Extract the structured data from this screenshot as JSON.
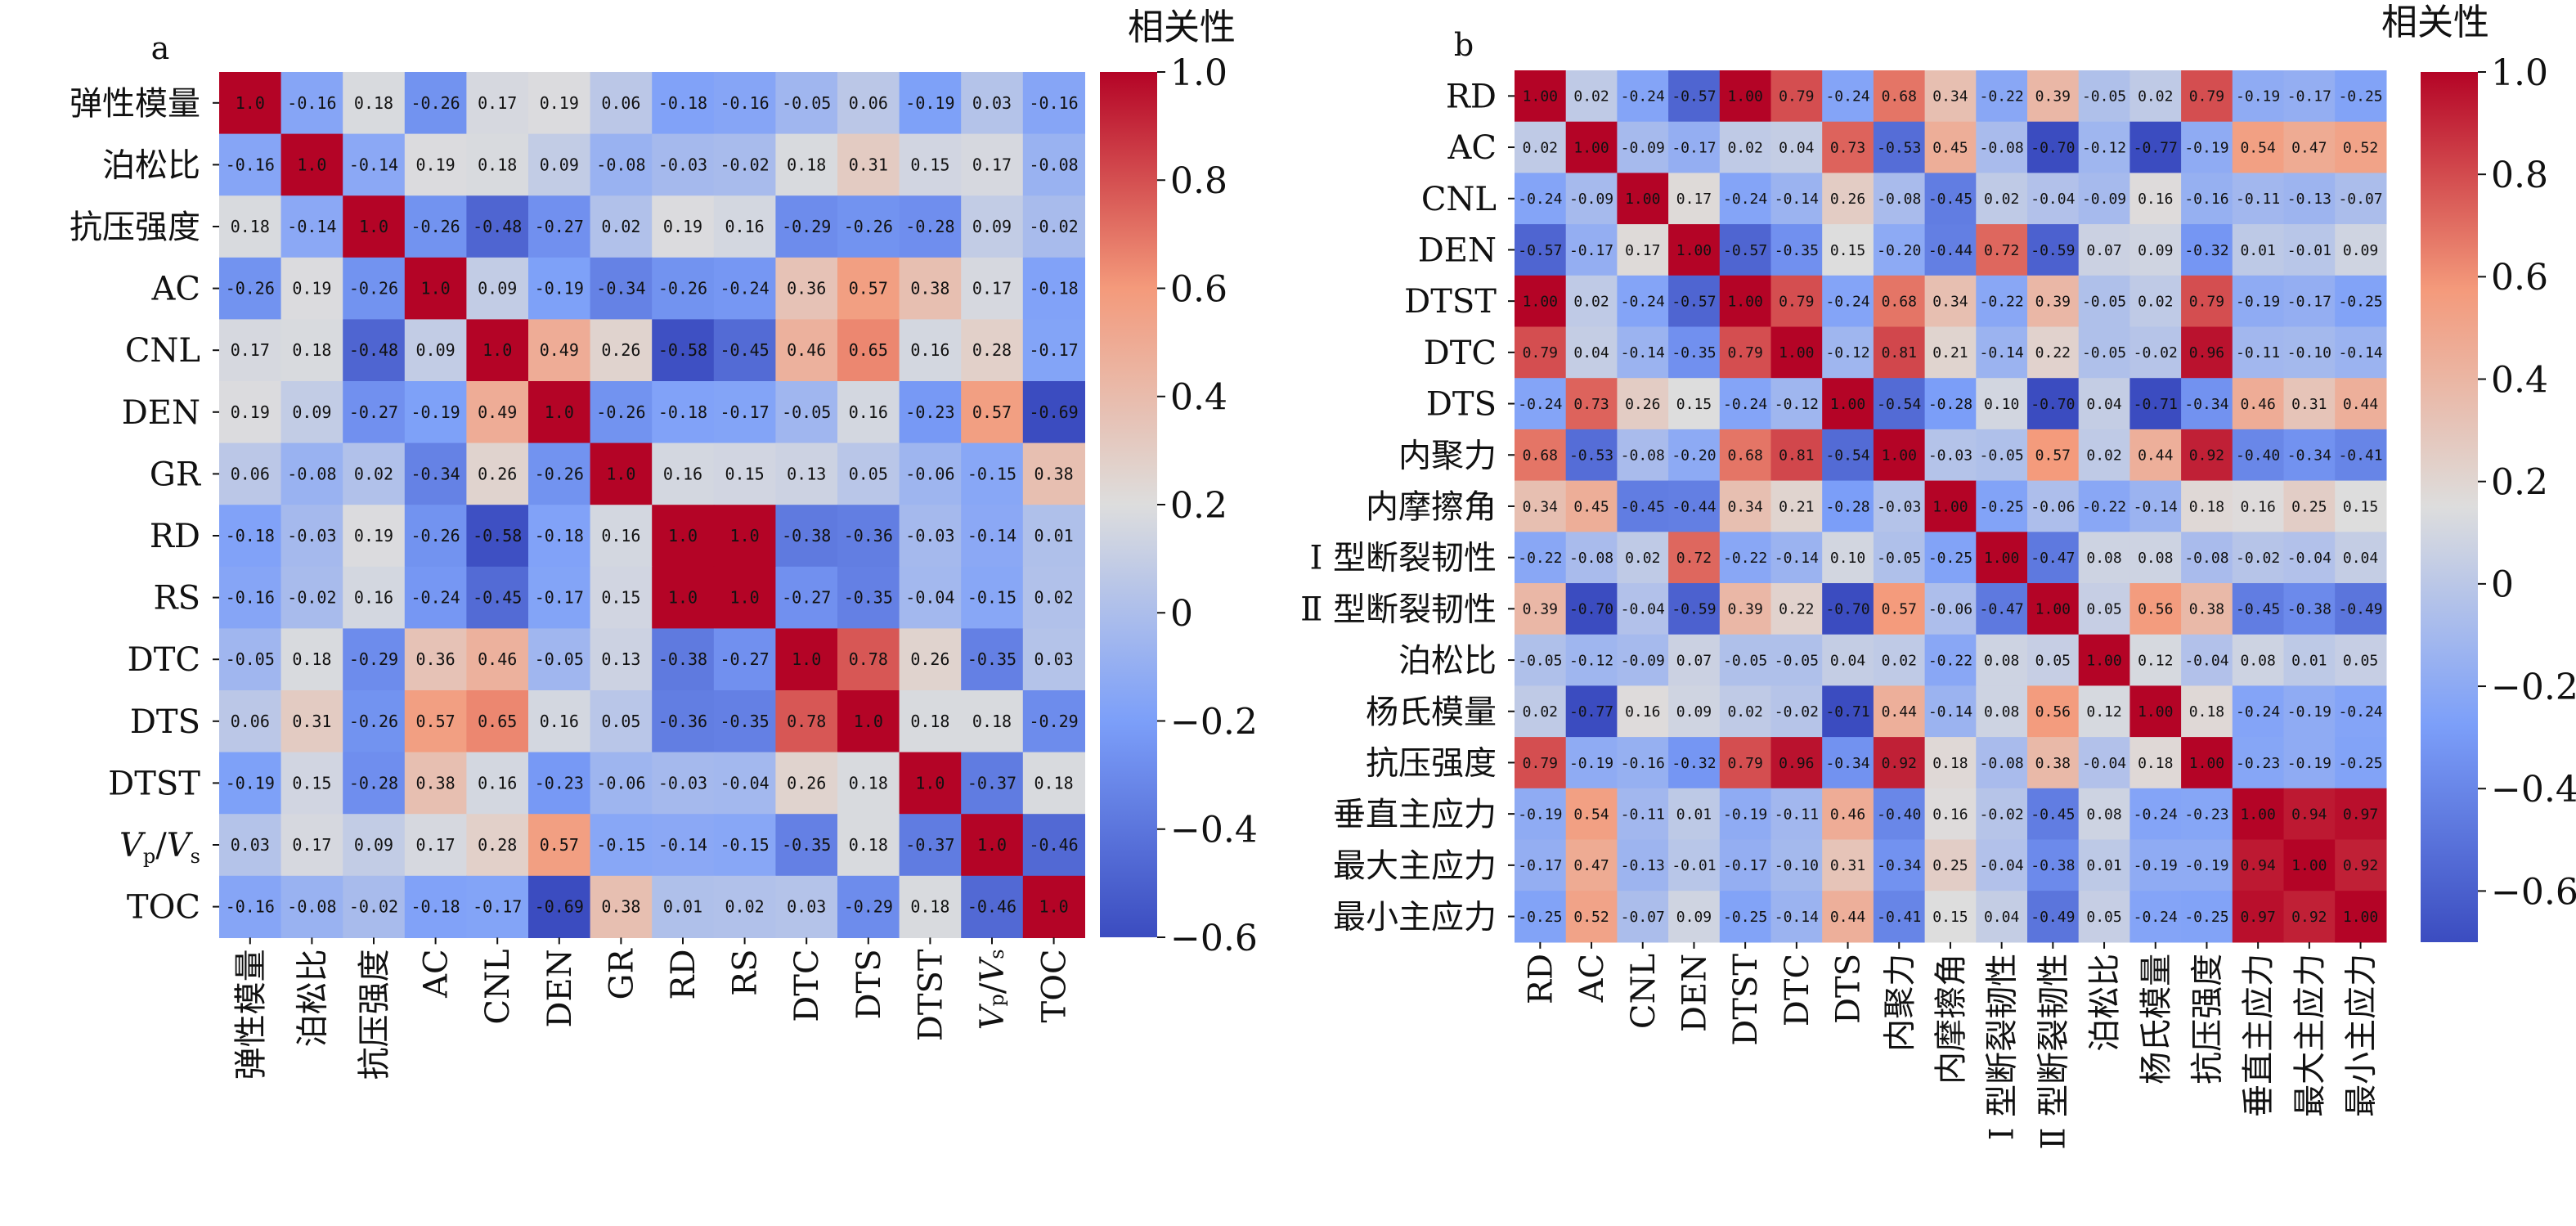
{
  "chart_data": [
    {
      "panel": "a",
      "type": "heatmap",
      "colorbar_title": "相关性",
      "vmin": -0.6,
      "vmax": 1.0,
      "colorbar_ticks": [
        "1.0",
        "0.8",
        "0.6",
        "0.4",
        "0.2",
        "0",
        "−0.2",
        "−0.4",
        "−0.6"
      ],
      "colorbar_tick_values": [
        1.0,
        0.8,
        0.6,
        0.4,
        0.2,
        0,
        -0.2,
        -0.4,
        -0.6
      ],
      "labels": [
        "弹性模量",
        "泊松比",
        "抗压强度",
        "AC",
        "CNL",
        "DEN",
        "GR",
        "RD",
        "RS",
        "DTC",
        "DTS",
        "DTST",
        "Vp/Vs",
        "TOC"
      ],
      "matrix": [
        [
          1.0,
          -0.16,
          0.18,
          -0.26,
          0.17,
          0.19,
          0.06,
          -0.18,
          -0.16,
          -0.05,
          0.06,
          -0.19,
          0.03,
          -0.16
        ],
        [
          -0.16,
          1.0,
          -0.14,
          0.19,
          0.18,
          0.09,
          -0.08,
          -0.03,
          -0.02,
          0.18,
          0.31,
          0.15,
          0.17,
          -0.08
        ],
        [
          0.18,
          -0.14,
          1.0,
          -0.26,
          -0.48,
          -0.27,
          0.02,
          0.19,
          0.16,
          -0.29,
          -0.26,
          -0.28,
          0.09,
          -0.02
        ],
        [
          -0.26,
          0.19,
          -0.26,
          1.0,
          0.09,
          -0.19,
          -0.34,
          -0.26,
          -0.24,
          0.36,
          0.57,
          0.38,
          0.17,
          -0.18
        ],
        [
          0.17,
          0.18,
          -0.48,
          0.09,
          1.0,
          0.49,
          0.26,
          -0.58,
          -0.45,
          0.46,
          0.65,
          0.16,
          0.28,
          -0.17
        ],
        [
          0.19,
          0.09,
          -0.27,
          -0.19,
          0.49,
          1.0,
          -0.26,
          -0.18,
          -0.17,
          -0.05,
          0.16,
          -0.23,
          0.57,
          -0.69
        ],
        [
          0.06,
          -0.08,
          0.02,
          -0.34,
          0.26,
          -0.26,
          1.0,
          0.16,
          0.15,
          0.13,
          0.05,
          -0.06,
          -0.15,
          0.38
        ],
        [
          -0.18,
          -0.03,
          0.19,
          -0.26,
          -0.58,
          -0.18,
          0.16,
          1.0,
          1.0,
          -0.38,
          -0.36,
          -0.03,
          -0.14,
          0.01
        ],
        [
          -0.16,
          -0.02,
          0.16,
          -0.24,
          -0.45,
          -0.17,
          0.15,
          1.0,
          1.0,
          -0.27,
          -0.35,
          -0.04,
          -0.15,
          0.02
        ],
        [
          -0.05,
          0.18,
          -0.29,
          0.36,
          0.46,
          -0.05,
          0.13,
          -0.38,
          -0.27,
          1.0,
          0.78,
          0.26,
          -0.35,
          0.03
        ],
        [
          0.06,
          0.31,
          -0.26,
          0.57,
          0.65,
          0.16,
          0.05,
          -0.36,
          -0.35,
          0.78,
          1.0,
          0.18,
          0.18,
          -0.29
        ],
        [
          -0.19,
          0.15,
          -0.28,
          0.38,
          0.16,
          -0.23,
          -0.06,
          -0.03,
          -0.04,
          0.26,
          0.18,
          1.0,
          -0.37,
          0.18
        ],
        [
          0.03,
          0.17,
          0.09,
          0.17,
          0.28,
          0.57,
          -0.15,
          -0.14,
          -0.15,
          -0.35,
          0.18,
          -0.37,
          1.0,
          -0.46
        ],
        [
          -0.16,
          -0.08,
          -0.02,
          -0.18,
          -0.17,
          -0.69,
          0.38,
          0.01,
          0.02,
          0.03,
          -0.29,
          0.18,
          -0.46,
          1.0
        ]
      ]
    },
    {
      "panel": "b",
      "type": "heatmap",
      "colorbar_title": "相关性",
      "vmin": -0.7,
      "vmax": 1.0,
      "colorbar_ticks": [
        "1.0",
        "0.8",
        "0.6",
        "0.4",
        "0.2",
        "0",
        "−0.2",
        "−0.4",
        "−0.6"
      ],
      "colorbar_tick_values": [
        1.0,
        0.8,
        0.6,
        0.4,
        0.2,
        0,
        -0.2,
        -0.4,
        -0.6
      ],
      "labels": [
        "RD",
        "AC",
        "CNL",
        "DEN",
        "DTST",
        "DTC",
        "DTS",
        "内聚力",
        "内摩擦角",
        "Ⅰ 型断裂韧性",
        "Ⅱ 型断裂韧性",
        "泊松比",
        "杨氏模量",
        "抗压强度",
        "垂直主应力",
        "最大主应力",
        "最小主应力"
      ],
      "matrix": [
        [
          1.0,
          0.02,
          -0.24,
          -0.57,
          1.0,
          0.79,
          -0.24,
          0.68,
          0.34,
          -0.22,
          0.39,
          -0.05,
          0.02,
          0.79,
          -0.19,
          -0.17,
          -0.25
        ],
        [
          0.02,
          1.0,
          -0.09,
          -0.17,
          0.02,
          0.04,
          0.73,
          -0.53,
          0.45,
          -0.08,
          -0.7,
          -0.12,
          -0.77,
          -0.19,
          0.54,
          0.47,
          0.52
        ],
        [
          -0.24,
          -0.09,
          1.0,
          0.17,
          -0.24,
          -0.14,
          0.26,
          -0.08,
          -0.45,
          0.02,
          -0.04,
          -0.09,
          0.16,
          -0.16,
          -0.11,
          -0.13,
          -0.07
        ],
        [
          -0.57,
          -0.17,
          0.17,
          1.0,
          -0.57,
          -0.35,
          0.15,
          -0.2,
          -0.44,
          0.72,
          -0.59,
          0.07,
          0.09,
          -0.32,
          0.01,
          -0.01,
          0.09
        ],
        [
          1.0,
          0.02,
          -0.24,
          -0.57,
          1.0,
          0.79,
          -0.24,
          0.68,
          0.34,
          -0.22,
          0.39,
          -0.05,
          0.02,
          0.79,
          -0.19,
          -0.17,
          -0.25
        ],
        [
          0.79,
          0.04,
          -0.14,
          -0.35,
          0.79,
          1.0,
          -0.12,
          0.81,
          0.21,
          -0.14,
          0.22,
          -0.05,
          -0.02,
          0.96,
          -0.11,
          -0.1,
          -0.14
        ],
        [
          -0.24,
          0.73,
          0.26,
          0.15,
          -0.24,
          -0.12,
          1.0,
          -0.54,
          -0.28,
          0.1,
          -0.7,
          0.04,
          -0.71,
          -0.34,
          0.46,
          0.31,
          0.44
        ],
        [
          0.68,
          -0.53,
          -0.08,
          -0.2,
          0.68,
          0.81,
          -0.54,
          1.0,
          -0.03,
          -0.05,
          0.57,
          0.02,
          0.44,
          0.92,
          -0.4,
          -0.34,
          -0.41
        ],
        [
          0.34,
          0.45,
          -0.45,
          -0.44,
          0.34,
          0.21,
          -0.28,
          -0.03,
          1.0,
          -0.25,
          -0.06,
          -0.22,
          -0.14,
          0.18,
          0.16,
          0.25,
          0.15
        ],
        [
          -0.22,
          -0.08,
          0.02,
          0.72,
          -0.22,
          -0.14,
          0.1,
          -0.05,
          -0.25,
          1.0,
          -0.47,
          0.08,
          0.08,
          -0.08,
          -0.02,
          -0.04,
          0.04
        ],
        [
          0.39,
          -0.7,
          -0.04,
          -0.59,
          0.39,
          0.22,
          -0.7,
          0.57,
          -0.06,
          -0.47,
          1.0,
          0.05,
          0.56,
          0.38,
          -0.45,
          -0.38,
          -0.49
        ],
        [
          -0.05,
          -0.12,
          -0.09,
          0.07,
          -0.05,
          -0.05,
          0.04,
          0.02,
          -0.22,
          0.08,
          0.05,
          1.0,
          0.12,
          -0.04,
          0.08,
          0.01,
          0.05
        ],
        [
          0.02,
          -0.77,
          0.16,
          0.09,
          0.02,
          -0.02,
          -0.71,
          0.44,
          -0.14,
          0.08,
          0.56,
          0.12,
          1.0,
          0.18,
          -0.24,
          -0.19,
          -0.24
        ],
        [
          0.79,
          -0.19,
          -0.16,
          -0.32,
          0.79,
          0.96,
          -0.34,
          0.92,
          0.18,
          -0.08,
          0.38,
          -0.04,
          0.18,
          1.0,
          -0.23,
          -0.19,
          -0.25
        ],
        [
          -0.19,
          0.54,
          -0.11,
          0.01,
          -0.19,
          -0.11,
          0.46,
          -0.4,
          0.16,
          -0.02,
          -0.45,
          0.08,
          -0.24,
          -0.23,
          1.0,
          0.94,
          0.97
        ],
        [
          -0.17,
          0.47,
          -0.13,
          -0.01,
          -0.17,
          -0.1,
          0.31,
          -0.34,
          0.25,
          -0.04,
          -0.38,
          0.01,
          -0.19,
          -0.19,
          0.94,
          1.0,
          0.92
        ],
        [
          -0.25,
          0.52,
          -0.07,
          0.09,
          -0.25,
          -0.14,
          0.44,
          -0.41,
          0.15,
          0.04,
          -0.49,
          0.05,
          -0.24,
          -0.25,
          0.97,
          0.92,
          1.0
        ]
      ]
    }
  ]
}
